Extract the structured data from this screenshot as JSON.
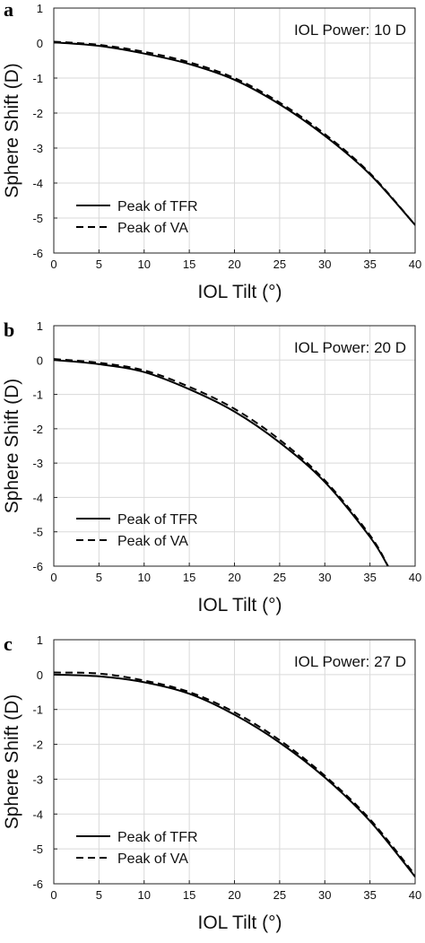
{
  "chart_data": [
    {
      "type": "line",
      "panel_label": "a",
      "annotation": "IOL Power: 10 D",
      "xlabel": "IOL Tilt (°)",
      "ylabel": "Sphere Shift (D)",
      "xlim": [
        0,
        40
      ],
      "ylim": [
        -6,
        1
      ],
      "xticks": [
        "0",
        "5",
        "10",
        "15",
        "20",
        "25",
        "30",
        "35",
        "40"
      ],
      "yticks": [
        "1",
        "0",
        "-1",
        "-2",
        "-3",
        "-4",
        "-5",
        "-6"
      ],
      "grid": true,
      "legend_position": "bottom-left",
      "series": [
        {
          "name": "Peak of TFR",
          "style": "solid",
          "x": [
            0,
            5,
            10,
            15,
            20,
            25,
            30,
            35,
            40
          ],
          "y": [
            0.02,
            -0.08,
            -0.3,
            -0.6,
            -1.05,
            -1.75,
            -2.65,
            -3.75,
            -5.2
          ]
        },
        {
          "name": "Peak of VA",
          "style": "dashed",
          "x": [
            0,
            5,
            10,
            15,
            20,
            25,
            30,
            35,
            40
          ],
          "y": [
            0.04,
            -0.05,
            -0.25,
            -0.55,
            -1.0,
            -1.7,
            -2.6,
            -3.72,
            -5.2
          ]
        }
      ]
    },
    {
      "type": "line",
      "panel_label": "b",
      "annotation": "IOL Power: 20 D",
      "xlabel": "IOL Tilt (°)",
      "ylabel": "Sphere Shift (D)",
      "xlim": [
        0,
        40
      ],
      "ylim": [
        -6,
        1
      ],
      "xticks": [
        "0",
        "5",
        "10",
        "15",
        "20",
        "25",
        "30",
        "35",
        "40"
      ],
      "yticks": [
        "1",
        "0",
        "-1",
        "-2",
        "-3",
        "-4",
        "-5",
        "-6"
      ],
      "grid": true,
      "legend_position": "bottom-left",
      "series": [
        {
          "name": "Peak of TFR",
          "style": "solid",
          "x": [
            0,
            5,
            10,
            15,
            20,
            25,
            30,
            35,
            37
          ],
          "y": [
            0.0,
            -0.12,
            -0.35,
            -0.85,
            -1.5,
            -2.4,
            -3.55,
            -5.15,
            -6.0
          ]
        },
        {
          "name": "Peak of VA",
          "style": "dashed",
          "x": [
            0,
            5,
            10,
            15,
            20,
            25,
            30,
            35,
            37
          ],
          "y": [
            0.03,
            -0.08,
            -0.3,
            -0.78,
            -1.42,
            -2.32,
            -3.5,
            -5.1,
            -6.0
          ]
        }
      ]
    },
    {
      "type": "line",
      "panel_label": "c",
      "annotation": "IOL Power: 27 D",
      "xlabel": "IOL Tilt (°)",
      "ylabel": "Sphere Shift (D)",
      "xlim": [
        0,
        40
      ],
      "ylim": [
        -6,
        1
      ],
      "xticks": [
        "0",
        "5",
        "10",
        "15",
        "20",
        "25",
        "30",
        "35",
        "40"
      ],
      "yticks": [
        "1",
        "0",
        "-1",
        "-2",
        "-3",
        "-4",
        "-5",
        "-6"
      ],
      "grid": true,
      "legend_position": "bottom-left",
      "series": [
        {
          "name": "Peak of TFR",
          "style": "solid",
          "x": [
            0,
            5,
            10,
            15,
            20,
            25,
            30,
            35,
            40
          ],
          "y": [
            0.0,
            -0.05,
            -0.22,
            -0.55,
            -1.15,
            -1.95,
            -2.95,
            -4.2,
            -5.8
          ]
        },
        {
          "name": "Peak of VA",
          "style": "dashed",
          "x": [
            0,
            5,
            10,
            15,
            20,
            25,
            30,
            35,
            40
          ],
          "y": [
            0.06,
            0.03,
            -0.17,
            -0.5,
            -1.08,
            -1.88,
            -2.9,
            -4.15,
            -5.75
          ]
        }
      ]
    }
  ]
}
